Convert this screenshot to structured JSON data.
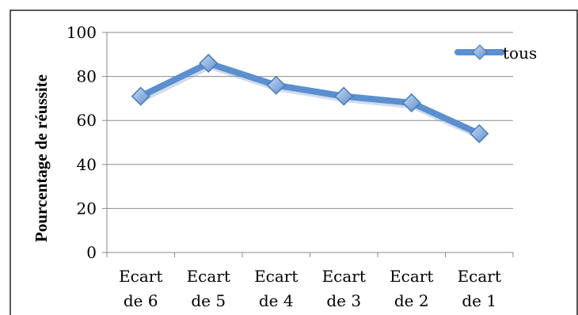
{
  "chart_data": {
    "type": "line",
    "categories": [
      "Ecart de 6",
      "Ecart de 5",
      "Ecart de 4",
      "Ecart de 3",
      "Ecart de 2",
      "Ecart de 1"
    ],
    "category_lines": [
      [
        "Ecart",
        "de 6"
      ],
      [
        "Ecart",
        "de 5"
      ],
      [
        "Ecart",
        "de 4"
      ],
      [
        "Ecart",
        "de 3"
      ],
      [
        "Ecart",
        "de 2"
      ],
      [
        "Ecart",
        "de 1"
      ]
    ],
    "series": [
      {
        "name": "tous",
        "values": [
          71,
          86,
          76,
          71,
          68,
          54
        ],
        "color": "#5b8fcf",
        "marker": "diamond"
      }
    ],
    "title": "",
    "xlabel": "",
    "ylabel": "Pourcentage de réussite",
    "ylim": [
      0,
      100
    ],
    "yticks": [
      "0",
      "20",
      "40",
      "60",
      "80",
      "100"
    ],
    "grid": true,
    "legend": "top-right"
  }
}
